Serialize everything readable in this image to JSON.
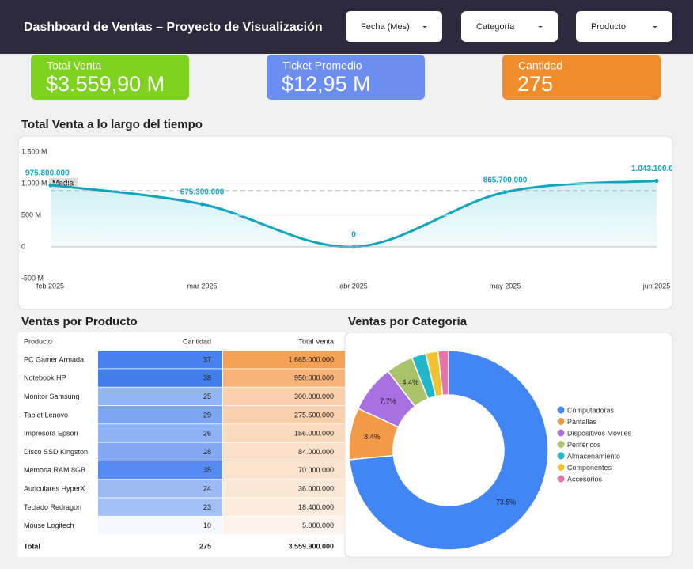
{
  "header": {
    "title": "Dashboard de Ventas – Proyecto de Visualización",
    "filters": [
      "Fecha (Mes)",
      "Categoría",
      "Producto"
    ]
  },
  "kpis": [
    {
      "label": "Total Venta",
      "value": "$3.559,90 M",
      "color": "#7ed321"
    },
    {
      "label": "Ticket Promedio",
      "value": "$12,95 M",
      "color": "#6c8ef0"
    },
    {
      "label": "Cantidad",
      "value": "275",
      "color": "#f08c2c"
    }
  ],
  "sections": {
    "line": "Total Venta a lo largo del tiempo",
    "table": "Ventas por Producto",
    "pie": "Ventas por Categoría"
  },
  "chart_data": [
    {
      "type": "line",
      "categories": [
        "feb 2025",
        "mar 2025",
        "abr 2025",
        "may 2025",
        "jun 2025"
      ],
      "values": [
        975800000,
        675300000,
        0,
        865700000,
        1043100000
      ],
      "value_labels": [
        "975.800.000",
        "675.300.000",
        "0",
        "865.700.000",
        "1.043.100.000"
      ],
      "color": "#12a5bd",
      "ylim": [
        -500000000,
        1500000000
      ],
      "yticks": [
        {
          "value": -500000000,
          "label": "-500 M"
        },
        0,
        {
          "value": 500000000,
          "label": "500 M"
        },
        {
          "value": 1000000000,
          "label": "1.000 M"
        },
        {
          "value": 1500000000,
          "label": "1.500 M"
        }
      ],
      "mean_line": {
        "label": "Media",
        "value": 889975000
      }
    },
    {
      "type": "donut",
      "categories": [
        "Computadoras",
        "Pantallas",
        "Dispositivos Móviles",
        "Periféricos",
        "Almacenamiento",
        "Componentes",
        "Accesorios"
      ],
      "values": [
        73.5,
        8.4,
        7.7,
        4.4,
        2.3,
        2.0,
        1.7
      ],
      "value_labels": [
        "73.5%",
        "8.4%",
        "7.7%",
        "4.4%",
        null,
        null,
        null
      ],
      "colors": [
        "#4285f4",
        "#f39a48",
        "#a870e0",
        "#abc46b",
        "#22b6cc",
        "#f2c230",
        "#e874ac"
      ]
    }
  ],
  "table": {
    "columns": [
      "Producto",
      "Cantidad",
      "Total Venta"
    ],
    "rows": [
      [
        "PC Gamer Armada",
        "37",
        "1.665.000.000"
      ],
      [
        "Notebook HP",
        "38",
        "950.000.000"
      ],
      [
        "Monitor Samsung",
        "25",
        "300.000.000"
      ],
      [
        "Tablet Lenovo",
        "29",
        "275.500.000"
      ],
      [
        "Impresora Epson",
        "26",
        "156.000.000"
      ],
      [
        "Disco SSD Kingston",
        "28",
        "84.000.000"
      ],
      [
        "Memoria RAM 8GB",
        "35",
        "70.000.000"
      ],
      [
        "Auriculares HyperX",
        "24",
        "36.000.000"
      ],
      [
        "Teclado Redragon",
        "23",
        "18.400.000"
      ],
      [
        "Mouse Logitech",
        "10",
        "5.000.000"
      ]
    ],
    "total": [
      "Total",
      "275",
      "3.559.900.000"
    ]
  }
}
